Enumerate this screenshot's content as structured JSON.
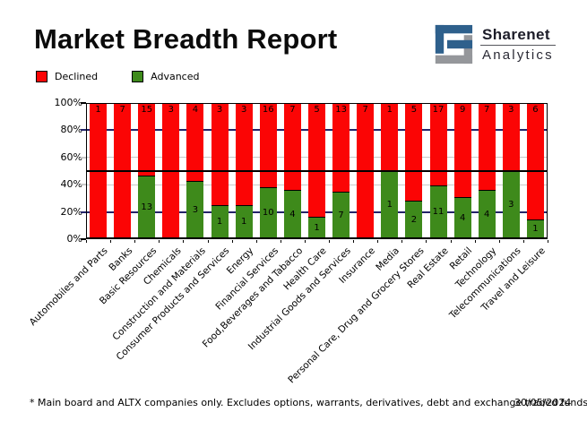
{
  "header": {
    "title": "Market Breadth Report",
    "brand": {
      "name": "Sharenet",
      "sub": "Analytics",
      "colors": {
        "blue": "#2e608c",
        "gray": "#95979b"
      }
    }
  },
  "legend": [
    {
      "label": "Declined",
      "color": "#fb0505"
    },
    {
      "label": "Advanced",
      "color": "#3e8a1b"
    }
  ],
  "chart_data": {
    "type": "bar",
    "stacked": true,
    "normalized": "percent",
    "title": "Market Breadth Report",
    "xlabel": "",
    "ylabel": "",
    "ylim": [
      0,
      100
    ],
    "yticks": [
      "0%",
      "20%",
      "40%",
      "60%",
      "80%",
      "100%"
    ],
    "legend_position": "top-left",
    "grid": "horizontal",
    "reference_line_percent": 50,
    "categories": [
      "Automobiles and Parts",
      "Banks",
      "Basic Resources",
      "Chemicals",
      "Construction and Materials",
      "Consumer Products and Services",
      "Energy",
      "Financial Services",
      "Food,Beverages and Tabacco",
      "Health Care",
      "Industrial Goods and Services",
      "Insurance",
      "Media",
      "Personal Care, Drug and Grocery Stores",
      "Real Estate",
      "Retail",
      "Technology",
      "Telecommunications",
      "Travel and Leisure"
    ],
    "series": [
      {
        "name": "Declined",
        "color": "#fb0505",
        "values": [
          1,
          7,
          15,
          3,
          4,
          3,
          3,
          16,
          7,
          5,
          13,
          7,
          1,
          5,
          17,
          9,
          7,
          3,
          6
        ]
      },
      {
        "name": "Advanced",
        "color": "#3e8a1b",
        "values": [
          0,
          0,
          13,
          0,
          3,
          1,
          1,
          10,
          4,
          1,
          7,
          0,
          1,
          2,
          11,
          4,
          4,
          3,
          1
        ]
      }
    ],
    "colors": {
      "grid_major": "#24246a",
      "grid_minor": "#c9c9c9",
      "reference_line": "#000000",
      "axis": "#000000"
    }
  },
  "footer": {
    "note": "* Main board and ALTX companies only. Excludes options, warrants, derivatives, debt and exchange traded funds",
    "date": "30/05/2024"
  }
}
